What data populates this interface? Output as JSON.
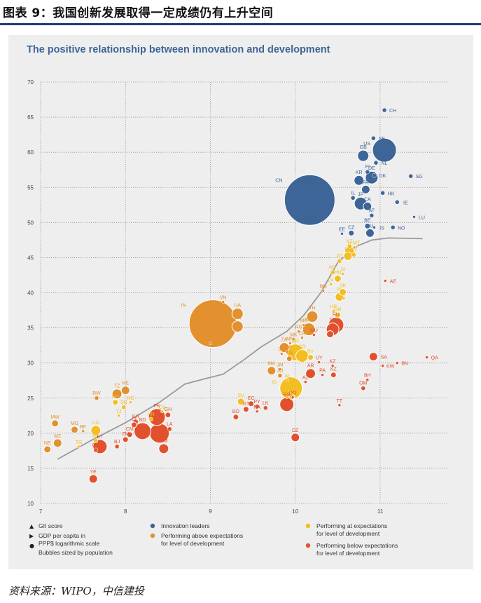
{
  "page_title": "图表 9：我国创新发展取得一定成绩仍有上升空间",
  "source_note": "资料来源：WIPO，中信建投",
  "colors": {
    "panel_bg": "#eeeeee",
    "title_rule": "#1f3b73",
    "leaders": "#3e6598",
    "above": "#e3902f",
    "at": "#f3be22",
    "below": "#e2512e",
    "trend": "#9a9a9a",
    "chart_title": "#3e6598"
  },
  "chart_data": {
    "type": "scatter",
    "title": "The positive relationship between innovation and development",
    "xlim": [
      7,
      11.8
    ],
    "ylim": [
      10,
      70
    ],
    "x_ticks": [
      7,
      8,
      9,
      10,
      11
    ],
    "x_tick_labels": [
      "7",
      "8",
      "9",
      "10",
      "11"
    ],
    "y_ticks": [
      10,
      15,
      20,
      25,
      30,
      35,
      40,
      45,
      50,
      55,
      60,
      65,
      70
    ],
    "x_scale": "log GDP per capita in PPP$",
    "grid": "dotted",
    "legend": {
      "left": [
        {
          "symbol": "▲",
          "text": "GII score"
        },
        {
          "symbol": "▶",
          "text": "GDP per capita in PPP$ logarithmic scale"
        },
        {
          "symbol": "●",
          "text": "Bubbles sized by population"
        }
      ],
      "series": [
        {
          "key": "leaders",
          "text": "Innovation leaders"
        },
        {
          "key": "above",
          "text": "Performing above expectations for level of development"
        },
        {
          "key": "at",
          "text": "Performing at expectations for level of development"
        },
        {
          "key": "below",
          "text": "Performing below expectations for level of development"
        }
      ]
    },
    "trend": [
      [
        7.2,
        16.3
      ],
      [
        7.6,
        19
      ],
      [
        8.0,
        21.5
      ],
      [
        8.4,
        24.4
      ],
      [
        8.7,
        27
      ],
      [
        8.95,
        27.8
      ],
      [
        9.15,
        28.4
      ],
      [
        9.4,
        30.5
      ],
      [
        9.6,
        32.3
      ],
      [
        9.9,
        34.5
      ],
      [
        10.1,
        36.8
      ],
      [
        10.3,
        40
      ],
      [
        10.5,
        44.3
      ],
      [
        10.7,
        46.5
      ],
      [
        10.9,
        47.5
      ],
      [
        11.1,
        47.8
      ],
      [
        11.5,
        47.7
      ]
    ],
    "points": [
      {
        "label": "CH",
        "x": 11.05,
        "y": 66,
        "r": 3,
        "g": "leaders"
      },
      {
        "label": "SE",
        "x": 10.92,
        "y": 62,
        "r": 3,
        "g": "leaders"
      },
      {
        "label": "US",
        "x": 11.05,
        "y": 60.3,
        "r": 17,
        "g": "leaders"
      },
      {
        "label": "GB",
        "x": 10.8,
        "y": 59.5,
        "r": 8,
        "g": "leaders"
      },
      {
        "label": "NL",
        "x": 10.95,
        "y": 58.5,
        "r": 3,
        "g": "leaders"
      },
      {
        "label": "FI",
        "x": 10.85,
        "y": 57.2,
        "r": 3,
        "g": "leaders"
      },
      {
        "label": "DK",
        "x": 10.93,
        "y": 56.7,
        "r": 3,
        "g": "leaders"
      },
      {
        "label": "KR",
        "x": 10.75,
        "y": 56,
        "r": 7,
        "g": "leaders"
      },
      {
        "label": "DE",
        "x": 10.9,
        "y": 56.4,
        "r": 9,
        "g": "leaders"
      },
      {
        "label": "SG",
        "x": 11.36,
        "y": 56.6,
        "r": 3,
        "g": "leaders"
      },
      {
        "label": "FR",
        "x": 10.83,
        "y": 54.7,
        "r": 6,
        "g": "leaders"
      },
      {
        "label": "HK",
        "x": 11.03,
        "y": 54.2,
        "r": 3,
        "g": "leaders"
      },
      {
        "label": "IL",
        "x": 10.68,
        "y": 53.5,
        "r": 3,
        "g": "leaders"
      },
      {
        "label": "JP",
        "x": 10.77,
        "y": 52.7,
        "r": 9,
        "g": "leaders"
      },
      {
        "label": "CA",
        "x": 10.85,
        "y": 52.3,
        "r": 6,
        "g": "leaders"
      },
      {
        "label": "IE",
        "x": 11.2,
        "y": 52.9,
        "r": 3,
        "g": "leaders"
      },
      {
        "label": "LU",
        "x": 11.4,
        "y": 50.8,
        "r": 2,
        "g": "leaders"
      },
      {
        "label": "AT",
        "x": 10.9,
        "y": 51,
        "r": 3,
        "g": "leaders"
      },
      {
        "label": "BE",
        "x": 10.85,
        "y": 49.5,
        "r": 4,
        "g": "leaders"
      },
      {
        "label": "IS",
        "x": 10.93,
        "y": 49.3,
        "r": 2,
        "g": "leaders"
      },
      {
        "label": "NO",
        "x": 11.15,
        "y": 49.3,
        "r": 3,
        "g": "leaders"
      },
      {
        "label": "AU",
        "x": 10.88,
        "y": 48.5,
        "r": 6,
        "g": "leaders"
      },
      {
        "label": "CZ",
        "x": 10.66,
        "y": 48.5,
        "r": 4,
        "g": "leaders"
      },
      {
        "label": "EE",
        "x": 10.55,
        "y": 48.4,
        "r": 2,
        "g": "leaders"
      },
      {
        "label": "CN",
        "x": 10.17,
        "y": 53.2,
        "r": 36,
        "g": "leaders"
      },
      {
        "label": "NZ",
        "x": 10.64,
        "y": 46.6,
        "r": 3,
        "g": "at"
      },
      {
        "label": "MT",
        "x": 10.72,
        "y": 46.5,
        "r": 2,
        "g": "at"
      },
      {
        "label": "IT",
        "x": 10.64,
        "y": 45.8,
        "r": 7,
        "g": "at"
      },
      {
        "label": "CY",
        "x": 10.69,
        "y": 45.4,
        "r": 3,
        "g": "at"
      },
      {
        "label": "ES",
        "x": 10.62,
        "y": 45.2,
        "r": 6,
        "g": "at"
      },
      {
        "label": "PT",
        "x": 10.52,
        "y": 44.5,
        "r": 3,
        "g": "at"
      },
      {
        "label": "MY",
        "x": 10.44,
        "y": 42.9,
        "r": 3,
        "g": "at"
      },
      {
        "label": "SI",
        "x": 10.56,
        "y": 42.7,
        "r": 2,
        "g": "at"
      },
      {
        "label": "HU",
        "x": 10.5,
        "y": 42,
        "r": 5,
        "g": "at"
      },
      {
        "label": "LV",
        "x": 10.42,
        "y": 41.2,
        "r": 2,
        "g": "at"
      },
      {
        "label": "BG",
        "x": 10.33,
        "y": 40.3,
        "r": 2,
        "g": "above"
      },
      {
        "label": "SK",
        "x": 10.56,
        "y": 40.1,
        "r": 5,
        "g": "at"
      },
      {
        "label": "PL",
        "x": 10.52,
        "y": 39.4,
        "r": 6,
        "g": "at"
      },
      {
        "label": "LT",
        "x": 10.57,
        "y": 39.2,
        "r": 2,
        "g": "at"
      },
      {
        "label": "HR",
        "x": 10.45,
        "y": 37.4,
        "r": 2,
        "g": "at"
      },
      {
        "label": "GR",
        "x": 10.5,
        "y": 36.8,
        "r": 4,
        "g": "at"
      },
      {
        "label": "TH",
        "x": 10.2,
        "y": 36.6,
        "r": 8,
        "g": "above"
      },
      {
        "label": "RU",
        "x": 10.48,
        "y": 35.4,
        "r": 11,
        "g": "below"
      },
      {
        "label": "ME",
        "x": 10.1,
        "y": 35.4,
        "r": 2,
        "g": "above"
      },
      {
        "label": "MX",
        "x": 10.16,
        "y": 34.8,
        "r": 9,
        "g": "above"
      },
      {
        "label": "RS",
        "x": 10.04,
        "y": 34.5,
        "r": 2,
        "g": "above"
      },
      {
        "label": "TR",
        "x": 10.44,
        "y": 34.8,
        "r": 9,
        "g": "below"
      },
      {
        "label": "CL",
        "x": 10.41,
        "y": 34.1,
        "r": 5,
        "g": "below"
      },
      {
        "label": "MU",
        "x": 10.22,
        "y": 34,
        "r": 2,
        "g": "below"
      },
      {
        "label": "CR",
        "x": 10.08,
        "y": 33.6,
        "r": 2,
        "g": "above"
      },
      {
        "label": "MK",
        "x": 9.98,
        "y": 33.4,
        "r": 2,
        "g": "above"
      },
      {
        "label": "MN",
        "x": 9.94,
        "y": 32.8,
        "r": 2,
        "g": "above"
      },
      {
        "label": "ZA",
        "x": 9.87,
        "y": 32.2,
        "r": 7,
        "g": "above"
      },
      {
        "label": "AM",
        "x": 9.9,
        "y": 31.6,
        "r": 2,
        "g": "above"
      },
      {
        "label": "BR",
        "x": 10.0,
        "y": 31.5,
        "r": 12,
        "g": "at"
      },
      {
        "label": "CO",
        "x": 10.08,
        "y": 31,
        "r": 9,
        "g": "at"
      },
      {
        "label": "GE",
        "x": 9.84,
        "y": 31.3,
        "r": 2,
        "g": "above"
      },
      {
        "label": "BY",
        "x": 10.18,
        "y": 30.8,
        "r": 4,
        "g": "at"
      },
      {
        "label": "TN",
        "x": 9.93,
        "y": 30.6,
        "r": 4,
        "g": "above"
      },
      {
        "label": "UY",
        "x": 10.28,
        "y": 30.1,
        "r": 2,
        "g": "below"
      },
      {
        "label": "KZ",
        "x": 10.44,
        "y": 29.6,
        "r": 2,
        "g": "below"
      },
      {
        "label": "MA",
        "x": 9.72,
        "y": 28.9,
        "r": 6,
        "g": "above"
      },
      {
        "label": "JM",
        "x": 9.82,
        "y": 29.1,
        "r": 2,
        "g": "above"
      },
      {
        "label": "AR",
        "x": 10.18,
        "y": 28.5,
        "r": 7,
        "g": "below"
      },
      {
        "label": "PA",
        "x": 10.32,
        "y": 28.3,
        "r": 2,
        "g": "below"
      },
      {
        "label": "KZ",
        "x": 10.45,
        "y": 28.3,
        "r": 4,
        "g": "below"
      },
      {
        "label": "JO",
        "x": 9.82,
        "y": 28.2,
        "r": 3,
        "g": "above"
      },
      {
        "label": "AL",
        "x": 9.91,
        "y": 27.5,
        "r": 2,
        "g": "at"
      },
      {
        "label": "AZ",
        "x": 10.12,
        "y": 27.3,
        "r": 2,
        "g": "below"
      },
      {
        "label": "IN",
        "x": 9.03,
        "y": 35.6,
        "r": 34,
        "g": "above"
      },
      {
        "label": "VN",
        "x": 9.15,
        "y": 38.7,
        "r": 2,
        "g": "above"
      },
      {
        "label": "UA",
        "x": 9.32,
        "y": 37,
        "r": 8,
        "g": "above"
      },
      {
        "label": "PH",
        "x": 9.32,
        "y": 35.2,
        "r": 8,
        "g": "above"
      },
      {
        "label": "MD",
        "x": 9.0,
        "y": 32.8,
        "r": 2,
        "g": "above"
      },
      {
        "label": "ID",
        "x": 9.95,
        "y": 26.4,
        "r": 16,
        "g": "at"
      },
      {
        "label": "BW",
        "x": 9.93,
        "y": 25.9,
        "r": 2,
        "g": "at"
      },
      {
        "label": "PE",
        "x": 9.96,
        "y": 25.2,
        "r": 4,
        "g": "at"
      },
      {
        "label": "LB",
        "x": 9.9,
        "y": 25.1,
        "r": 2,
        "g": "at"
      },
      {
        "label": "DO",
        "x": 9.97,
        "y": 25.1,
        "r": 2,
        "g": "below"
      },
      {
        "label": "SV",
        "x": 9.36,
        "y": 24.5,
        "r": 5,
        "g": "at"
      },
      {
        "label": "EC",
        "x": 9.48,
        "y": 24.2,
        "r": 4,
        "g": "below"
      },
      {
        "label": "EG",
        "x": 9.9,
        "y": 24.1,
        "r": 10,
        "g": "below"
      },
      {
        "label": "PY",
        "x": 9.55,
        "y": 23.8,
        "r": 3,
        "g": "below"
      },
      {
        "label": "LK",
        "x": 9.65,
        "y": 23.6,
        "r": 3,
        "g": "below"
      },
      {
        "label": "GT",
        "x": 9.42,
        "y": 23.4,
        "r": 4,
        "g": "below"
      },
      {
        "label": "NA",
        "x": 9.55,
        "y": 23.1,
        "r": 2,
        "g": "below"
      },
      {
        "label": "BO",
        "x": 9.3,
        "y": 22.3,
        "r": 4,
        "g": "below"
      },
      {
        "label": "DZ",
        "x": 10.0,
        "y": 19.4,
        "r": 6,
        "g": "below"
      },
      {
        "label": "TT",
        "x": 10.52,
        "y": 24,
        "r": 2,
        "g": "below"
      },
      {
        "label": "OM",
        "x": 10.8,
        "y": 26.4,
        "r": 3,
        "g": "below"
      },
      {
        "label": "BH",
        "x": 10.85,
        "y": 27.6,
        "r": 2,
        "g": "below"
      },
      {
        "label": "KW",
        "x": 11.03,
        "y": 29.6,
        "r": 2,
        "g": "below"
      },
      {
        "label": "BN",
        "x": 11.2,
        "y": 30,
        "r": 2,
        "g": "below"
      },
      {
        "label": "QA",
        "x": 11.55,
        "y": 30.8,
        "r": 2,
        "g": "below"
      },
      {
        "label": "SA",
        "x": 10.92,
        "y": 30.9,
        "r": 6,
        "g": "below"
      },
      {
        "label": "AE",
        "x": 11.06,
        "y": 41.7,
        "r": 2,
        "g": "below"
      },
      {
        "label": "TZ",
        "x": 7.9,
        "y": 25.6,
        "r": 7,
        "g": "above"
      },
      {
        "label": "KE",
        "x": 8.0,
        "y": 26.1,
        "r": 6,
        "g": "above"
      },
      {
        "label": "RW",
        "x": 7.66,
        "y": 25,
        "r": 3,
        "g": "above"
      },
      {
        "label": "NP",
        "x": 7.88,
        "y": 24.4,
        "r": 4,
        "g": "at"
      },
      {
        "label": "KG",
        "x": 8.06,
        "y": 24.4,
        "r": 2,
        "g": "at"
      },
      {
        "label": "SN",
        "x": 7.98,
        "y": 23.7,
        "r": 3,
        "g": "at"
      },
      {
        "label": "CV",
        "x": 8.43,
        "y": 23.1,
        "r": 2,
        "g": "at"
      },
      {
        "label": "TJ",
        "x": 7.92,
        "y": 22.5,
        "r": 2,
        "g": "at"
      },
      {
        "label": "GH",
        "x": 8.5,
        "y": 22.6,
        "r": 4,
        "g": "below"
      },
      {
        "label": "HN",
        "x": 8.3,
        "y": 22,
        "r": 3,
        "g": "at"
      },
      {
        "label": "PK",
        "x": 8.37,
        "y": 22.3,
        "r": 12,
        "g": "below"
      },
      {
        "label": "KH",
        "x": 8.12,
        "y": 21.6,
        "r": 4,
        "g": "below"
      },
      {
        "label": "CI",
        "x": 8.1,
        "y": 21.2,
        "r": 4,
        "g": "below"
      },
      {
        "label": "MG",
        "x": 7.4,
        "y": 20.5,
        "r": 5,
        "g": "above"
      },
      {
        "label": "BF",
        "x": 7.5,
        "y": 20.3,
        "r": 2,
        "g": "above"
      },
      {
        "label": "UG",
        "x": 7.65,
        "y": 20.4,
        "r": 7,
        "g": "at"
      },
      {
        "label": "MW",
        "x": 7.17,
        "y": 21.4,
        "r": 5,
        "g": "above"
      },
      {
        "label": "MZ",
        "x": 7.2,
        "y": 18.6,
        "r": 6,
        "g": "above"
      },
      {
        "label": "NE",
        "x": 7.08,
        "y": 17.7,
        "r": 5,
        "g": "above"
      },
      {
        "label": "TG",
        "x": 7.45,
        "y": 18.1,
        "r": 2,
        "g": "at"
      },
      {
        "label": "ML",
        "x": 7.65,
        "y": 18.9,
        "r": 3,
        "g": "at"
      },
      {
        "label": "ET",
        "x": 7.7,
        "y": 18.1,
        "r": 10,
        "g": "below"
      },
      {
        "label": "GN",
        "x": 7.65,
        "y": 17.6,
        "r": 3,
        "g": "below"
      },
      {
        "label": "BJ",
        "x": 7.9,
        "y": 18.1,
        "r": 3,
        "g": "below"
      },
      {
        "label": "CM",
        "x": 8.05,
        "y": 19.8,
        "r": 4,
        "g": "below"
      },
      {
        "label": "ZM",
        "x": 8.0,
        "y": 19.1,
        "r": 4,
        "g": "below"
      },
      {
        "label": "BD",
        "x": 8.2,
        "y": 20.3,
        "r": 12,
        "g": "below"
      },
      {
        "label": "NG",
        "x": 8.4,
        "y": 20,
        "r": 14,
        "g": "below"
      },
      {
        "label": "LA",
        "x": 8.52,
        "y": 20.6,
        "r": 3,
        "g": "below"
      },
      {
        "label": "MM",
        "x": 8.45,
        "y": 17.8,
        "r": 7,
        "g": "below"
      },
      {
        "label": "YE",
        "x": 7.62,
        "y": 13.5,
        "r": 6,
        "g": "below"
      }
    ]
  }
}
